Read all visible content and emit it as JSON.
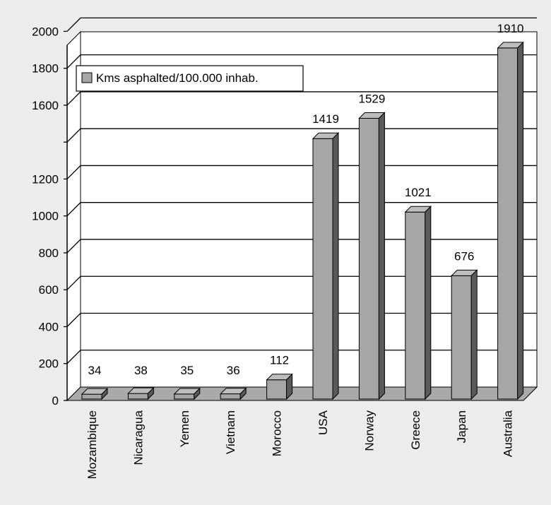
{
  "chart_data": {
    "type": "bar",
    "title": "",
    "xlabel": "",
    "ylabel": "",
    "categories": [
      "Mozambique",
      "Nicaragua",
      "Yemen",
      "Vietnam",
      "Morocco",
      "USA",
      "Norway",
      "Greece",
      "Japan",
      "Australia"
    ],
    "series": [
      {
        "name": "Kms asphalted/100.000 inhab.",
        "values": [
          34,
          38,
          35,
          36,
          112,
          1419,
          1529,
          1021,
          676,
          1910
        ]
      }
    ],
    "data_labels": [
      "34",
      "38",
      "35",
      "36",
      "112",
      "1419",
      "1529",
      "1021",
      "676",
      "1910"
    ],
    "y_ticks": [
      "0",
      "200",
      "400",
      "600",
      "800",
      "1000",
      "1200",
      "1600",
      "1800",
      "2000"
    ],
    "ylim": [
      0,
      2200
    ],
    "grid": true,
    "legend_position": "top-left",
    "colors": {
      "bar_front": "#a6a6a6",
      "bar_top": "#bdbdbd",
      "bar_side": "#5a5a5a",
      "wall": "#ffffff",
      "floor": "#a9a9a9",
      "background": "#ececec"
    }
  }
}
